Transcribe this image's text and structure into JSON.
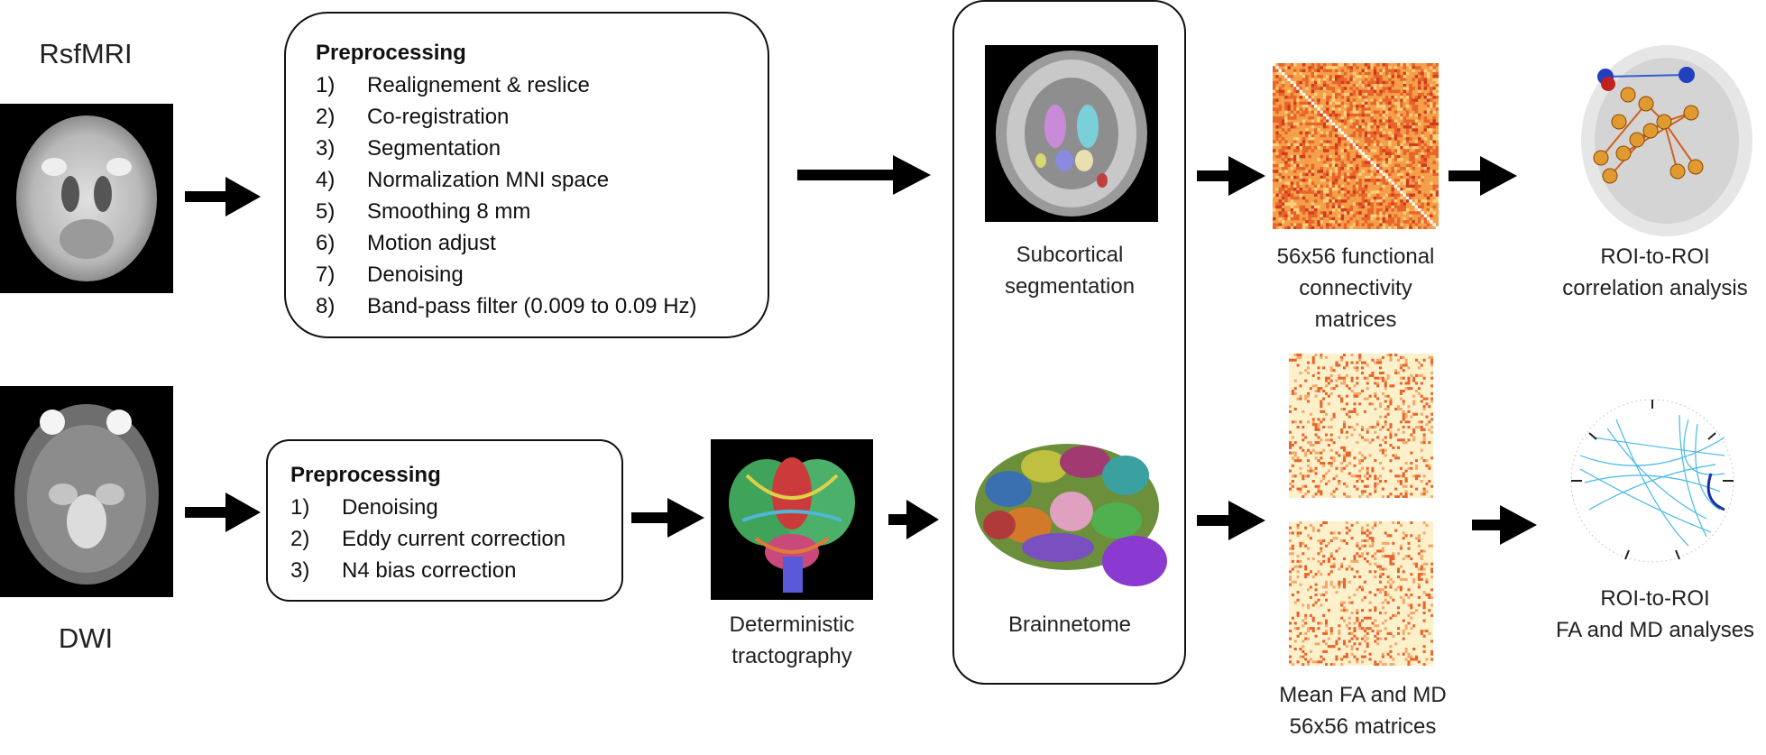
{
  "inputs": {
    "rsfmri_label": "RsfMRI",
    "dwi_label": "DWI"
  },
  "preprocessing_rsfmri": {
    "title": "Preprocessing",
    "steps": [
      {
        "num": "1)",
        "text": "Realignement & reslice"
      },
      {
        "num": "2)",
        "text": "Co-registration"
      },
      {
        "num": "3)",
        "text": "Segmentation"
      },
      {
        "num": "4)",
        "text": "Normalization MNI space"
      },
      {
        "num": "5)",
        "text": "Smoothing 8 mm"
      },
      {
        "num": "6)",
        "text": "Motion adjust"
      },
      {
        "num": "7)",
        "text": "Denoising"
      },
      {
        "num": "8)",
        "text": "Band-pass filter (0.009 to 0.09 Hz)"
      }
    ]
  },
  "preprocessing_dwi": {
    "title": "Preprocessing",
    "steps": [
      {
        "num": "1)",
        "text": "Denoising"
      },
      {
        "num": "2)",
        "text": "Eddy current correction"
      },
      {
        "num": "3)",
        "text": "N4 bias correction"
      }
    ]
  },
  "tractography": {
    "line1": "Deterministic",
    "line2": "tractography"
  },
  "segmentation": {
    "line1": "Subcortical",
    "line2": "segmentation",
    "atlas": "Brainnetome"
  },
  "matrices": {
    "functional": {
      "line1": "56x56 functional",
      "line2": "connectivity",
      "line3": "matrices"
    },
    "structural": {
      "line1": "Mean FA and MD",
      "line2": "56x56 matrices"
    }
  },
  "analyses": {
    "correlation": {
      "line1": "ROI-to-ROI",
      "line2": "correlation analysis"
    },
    "fa_md": {
      "line1": "ROI-to-ROI",
      "line2": "FA and MD analyses"
    }
  }
}
